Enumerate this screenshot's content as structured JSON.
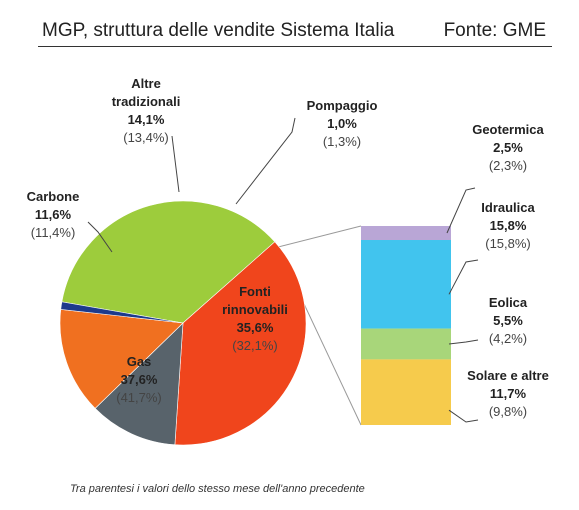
{
  "header": {
    "title": "MGP, struttura delle vendite Sistema Italia",
    "source": "Fonte: GME"
  },
  "footnote": "Tra parentesi i valori dello stesso mese dell'anno precedente",
  "colors": {
    "fonti_rinnovabili": "#9dcc3c",
    "gas": "#f0451c",
    "carbone": "#58636b",
    "altre_tradizionali": "#f07020",
    "pompaggio": "#1c3a8c",
    "geotermica": "#b9a6d6",
    "idraulica": "#41c4ee",
    "eolica": "#a8d67a",
    "solare": "#f6cb4c",
    "connector": "#999999",
    "leader": "#444444"
  },
  "chart_data": [
    {
      "type": "pie",
      "title": "MGP, struttura delle vendite Sistema Italia",
      "source": "Fonte: GME",
      "categories": [
        "Fonti rinnovabili",
        "Gas",
        "Carbone",
        "Altre tradizionali",
        "Pompaggio"
      ],
      "series": [
        {
          "name": "current",
          "values": [
            35.6,
            37.6,
            11.6,
            14.1,
            1.0
          ]
        },
        {
          "name": "previous",
          "values": [
            32.1,
            41.7,
            11.4,
            13.4,
            1.3
          ]
        }
      ],
      "labels": [
        {
          "name": [
            "Fonti",
            "rinnovabili"
          ],
          "value": "35,6%",
          "prev": "(32,1%)"
        },
        {
          "name": [
            "Gas"
          ],
          "value": "37,6%",
          "prev": "(41,7%)"
        },
        {
          "name": [
            "Carbone"
          ],
          "value": "11,6%",
          "prev": "(11,4%)"
        },
        {
          "name": [
            "Altre",
            "tradizionali"
          ],
          "value": "14,1%",
          "prev": "(13,4%)"
        },
        {
          "name": [
            "Pompaggio"
          ],
          "value": "1,0%",
          "prev": "(1,3%)"
        }
      ]
    },
    {
      "type": "bar",
      "stacked": true,
      "categories": [
        "Geotermica",
        "Idraulica",
        "Eolica",
        "Solare e altre"
      ],
      "series": [
        {
          "name": "current",
          "values": [
            2.5,
            15.8,
            5.5,
            11.7
          ]
        },
        {
          "name": "previous",
          "values": [
            2.3,
            15.8,
            4.2,
            9.8
          ]
        }
      ],
      "labels": [
        {
          "name": "Geotermica",
          "value": "2,5%",
          "prev": "(2,3%)"
        },
        {
          "name": "Idraulica",
          "value": "15,8%",
          "prev": "(15,8%)"
        },
        {
          "name": "Eolica",
          "value": "5,5%",
          "prev": "(4,2%)"
        },
        {
          "name": "Solare e altre",
          "value": "11,7%",
          "prev": "(9,8%)"
        }
      ]
    }
  ]
}
